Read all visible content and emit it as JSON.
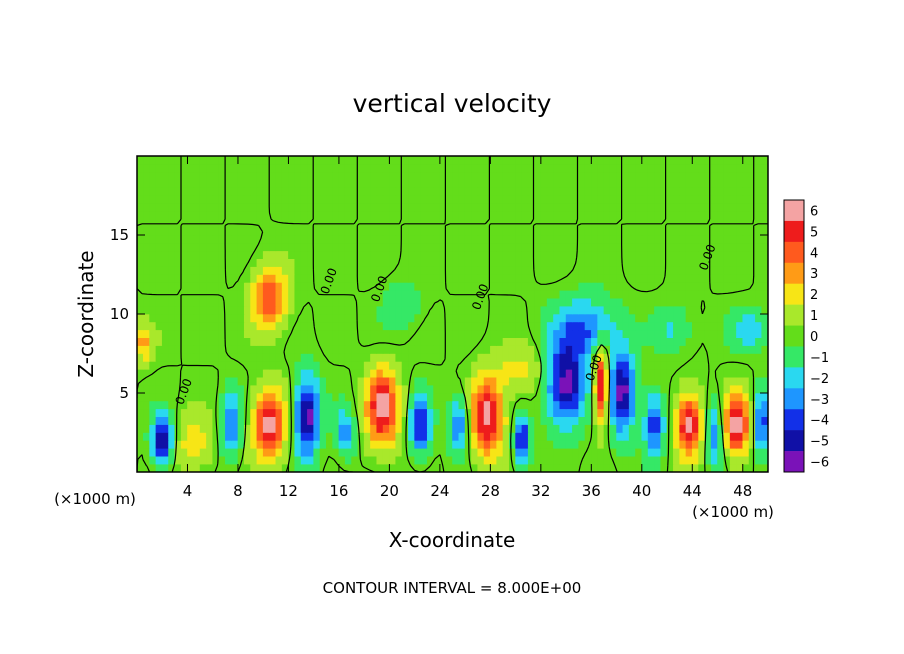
{
  "chart_data": {
    "type": "heatmap",
    "title": "vertical velocity",
    "xlabel": "X-coordinate",
    "ylabel": "Z-coordinate",
    "x_unit": "(×1000 m)",
    "x_unit_right": "(×1000 m)",
    "xlim": [
      0,
      50
    ],
    "ylim": [
      0,
      20
    ],
    "x_ticks": [
      4,
      8,
      12,
      16,
      20,
      24,
      28,
      32,
      36,
      40,
      44,
      48
    ],
    "y_ticks": [
      5,
      10,
      15
    ],
    "colorbar": {
      "levels": [
        6,
        5,
        4,
        3,
        2,
        1,
        0,
        -1,
        -2,
        -3,
        -4,
        -5,
        -6
      ],
      "labels": [
        "6",
        "5",
        "4",
        "3",
        "2",
        "1",
        "0",
        "−1",
        "−2",
        "−3",
        "−4",
        "−5",
        "−6"
      ],
      "colors": [
        "#f4a3a3",
        "#ee1c1c",
        "#ff5a1e",
        "#ff9b16",
        "#f7e516",
        "#a9e82b",
        "#63dd1a",
        "#35e866",
        "#2ad8f0",
        "#1e96ff",
        "#1230e8",
        "#1010a6",
        "#7a12b8"
      ]
    },
    "contour_label": "0.00",
    "footer": "CONTOUR INTERVAL = 8.000E+00",
    "features": [
      {
        "x": 10.5,
        "z": 11.0,
        "w": 0.75,
        "sx": 1.4,
        "sz": 2.0
      },
      {
        "x": 10.5,
        "z": 3.0,
        "w": 1.0,
        "sx": 1.3,
        "sz": 2.2
      },
      {
        "x": 19.5,
        "z": 4.0,
        "w": 1.0,
        "sx": 1.3,
        "sz": 2.4
      },
      {
        "x": 27.8,
        "z": 3.5,
        "w": 1.0,
        "sx": 1.3,
        "sz": 2.5
      },
      {
        "x": 36.8,
        "z": 5.5,
        "w": 1.0,
        "sx": 0.6,
        "sz": 2.5
      },
      {
        "x": 43.8,
        "z": 3.0,
        "w": 1.0,
        "sx": 1.1,
        "sz": 2.0
      },
      {
        "x": 47.5,
        "z": 3.0,
        "w": 1.0,
        "sx": 1.1,
        "sz": 2.0
      },
      {
        "x": 0.5,
        "z": 8.2,
        "w": 0.5,
        "sx": 0.8,
        "sz": 1.2
      },
      {
        "x": 4.5,
        "z": 1.8,
        "w": 0.35,
        "sx": 1.5,
        "sz": 1.8
      },
      {
        "x": 30.5,
        "z": 6.5,
        "w": 0.3,
        "sx": 2.0,
        "sz": 1.5
      },
      {
        "x": 2.0,
        "z": 2.0,
        "w": -1.0,
        "sx": 0.8,
        "sz": 1.5
      },
      {
        "x": 7.5,
        "z": 3.0,
        "w": -0.6,
        "sx": 0.8,
        "sz": 2.0
      },
      {
        "x": 13.5,
        "z": 3.5,
        "w": -1.0,
        "sx": 1.0,
        "sz": 2.5
      },
      {
        "x": 16.5,
        "z": 2.5,
        "w": -0.5,
        "sx": 0.8,
        "sz": 1.5
      },
      {
        "x": 22.5,
        "z": 3.0,
        "w": -0.8,
        "sx": 0.8,
        "sz": 1.8
      },
      {
        "x": 25.5,
        "z": 3.0,
        "w": -0.6,
        "sx": 0.8,
        "sz": 1.8
      },
      {
        "x": 30.5,
        "z": 2.0,
        "w": -0.9,
        "sx": 0.6,
        "sz": 1.5
      },
      {
        "x": 34.0,
        "z": 5.5,
        "w": -1.0,
        "sx": 1.5,
        "sz": 2.5
      },
      {
        "x": 38.5,
        "z": 5.0,
        "w": -1.0,
        "sx": 1.0,
        "sz": 2.5
      },
      {
        "x": 35.5,
        "z": 9.0,
        "w": -0.6,
        "sx": 2.5,
        "sz": 2.0
      },
      {
        "x": 41.0,
        "z": 3.0,
        "w": -0.7,
        "sx": 0.8,
        "sz": 2.0
      },
      {
        "x": 45.8,
        "z": 2.5,
        "w": -0.6,
        "sx": 0.8,
        "sz": 2.0
      },
      {
        "x": 42.5,
        "z": 9.0,
        "w": -0.3,
        "sx": 1.5,
        "sz": 1.5
      },
      {
        "x": 48.5,
        "z": 9.0,
        "w": -0.4,
        "sx": 1.5,
        "sz": 1.2
      },
      {
        "x": 49.5,
        "z": 3.0,
        "w": -0.7,
        "sx": 0.6,
        "sz": 2.0
      },
      {
        "x": 21.0,
        "z": 10.5,
        "w": -0.25,
        "sx": 1.5,
        "sz": 1.5
      }
    ]
  }
}
